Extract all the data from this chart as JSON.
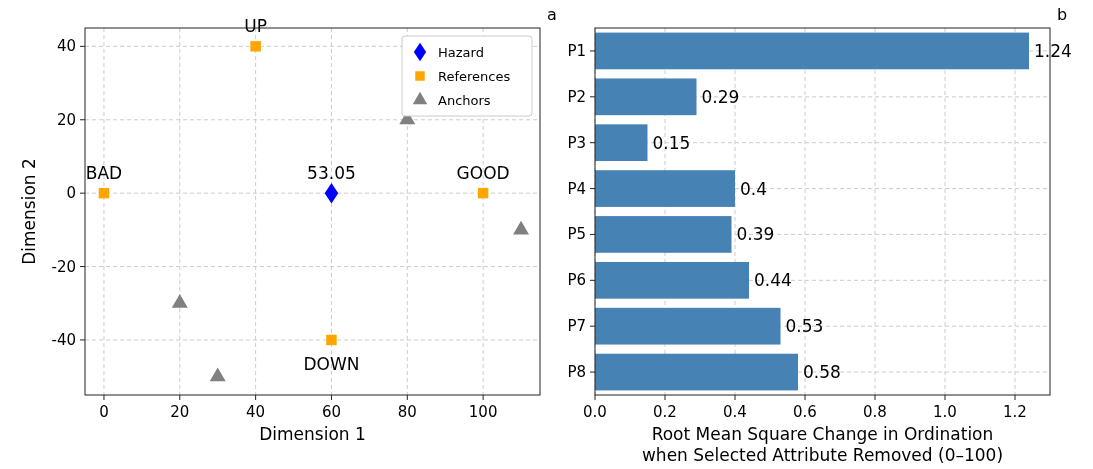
{
  "chart_data": [
    {
      "type": "scatter",
      "xlabel": "Dimension 1",
      "ylabel": "Dimension 2",
      "xlim": [
        -5,
        115
      ],
      "ylim": [
        -55,
        45
      ],
      "xticks": [
        0,
        20,
        40,
        60,
        80,
        100
      ],
      "yticks": [
        -40,
        -20,
        0,
        20,
        40
      ],
      "grid": true,
      "legend": "top right",
      "series": [
        {
          "name": "Hazard",
          "color": "#0000ff",
          "marker": "diamond",
          "x": [
            60
          ],
          "values": [
            0
          ]
        },
        {
          "name": "References",
          "color": "#ffa500",
          "marker": "square",
          "x": [
            40,
            0,
            100,
            60
          ],
          "values": [
            40,
            0,
            0,
            -40
          ]
        },
        {
          "name": "Anchors",
          "color": "#808080",
          "marker": "triangle",
          "x": [
            80,
            110,
            20,
            30
          ],
          "values": [
            20,
            -10,
            -30,
            -50
          ]
        }
      ],
      "annotations": [
        {
          "text": "53.05",
          "x": 60,
          "y": 0
        },
        {
          "text": "UP",
          "x": 40,
          "y": 40
        },
        {
          "text": "BAD",
          "x": 0,
          "y": 0
        },
        {
          "text": "GOOD",
          "x": 100,
          "y": 0
        },
        {
          "text": "DOWN",
          "x": 60,
          "y": -40
        },
        "a"
      ]
    },
    {
      "type": "bar",
      "orientation": "horizontal",
      "xlabel": "Root Mean Square Change in Ordination\nwhen Selected Attribute Removed (0–100)",
      "categories": [
        "P1",
        "P2",
        "P3",
        "P4",
        "P5",
        "P6",
        "P7",
        "P8"
      ],
      "values": [
        1.24,
        0.29,
        0.15,
        0.4,
        0.39,
        0.44,
        0.53,
        0.58
      ],
      "color": "#4682b4",
      "xlim": [
        0,
        1.3
      ],
      "xticks": [
        {
          "value": 0,
          "label": "0.0"
        },
        {
          "value": 0.2,
          "label": "0.2"
        },
        {
          "value": 0.4,
          "label": "0.4"
        },
        {
          "value": 0.6,
          "label": "0.6"
        },
        {
          "value": 0.8,
          "label": "0.8"
        },
        {
          "value": 1,
          "label": "1.0"
        },
        {
          "value": 1.2,
          "label": "1.2"
        }
      ],
      "grid": true,
      "data_labels": true,
      "annotations": [
        "b"
      ]
    }
  ]
}
